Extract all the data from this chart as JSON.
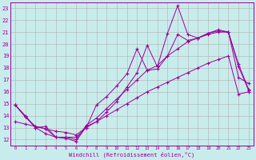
{
  "xlabel": "Windchill (Refroidissement éolien,°C)",
  "bg_color": "#c8ecec",
  "line_color": "#990099",
  "grid_color": "#b0b0b0",
  "ylim": [
    12,
    23
  ],
  "xlim": [
    0,
    23
  ],
  "series": [
    [
      14.9,
      14.0,
      13.0,
      12.5,
      12.2,
      12.1,
      11.85,
      13.1,
      13.5,
      14.3,
      15.2,
      16.4,
      17.6,
      19.9,
      18.1,
      20.9,
      23.2,
      20.8,
      20.5,
      20.9,
      21.2,
      21.0,
      17.2,
      16.7
    ],
    [
      14.9,
      13.9,
      13.0,
      13.1,
      12.2,
      12.2,
      12.2,
      13.0,
      14.9,
      15.6,
      16.5,
      17.5,
      19.6,
      17.8,
      17.9,
      19.0,
      20.8,
      20.3,
      20.5,
      20.9,
      21.1,
      21.0,
      18.1,
      16.1
    ],
    [
      14.9,
      13.9,
      13.1,
      12.9,
      12.2,
      12.2,
      12.0,
      13.2,
      13.8,
      14.6,
      15.4,
      16.2,
      17.0,
      17.8,
      18.2,
      19.0,
      19.6,
      20.2,
      20.5,
      20.8,
      21.0,
      21.0,
      18.3,
      16.2
    ],
    [
      13.5,
      13.3,
      13.1,
      12.9,
      12.7,
      12.6,
      12.4,
      13.0,
      13.5,
      14.0,
      14.5,
      15.0,
      15.5,
      16.0,
      16.4,
      16.8,
      17.2,
      17.6,
      18.0,
      18.4,
      18.7,
      19.0,
      15.8,
      16.0
    ]
  ]
}
